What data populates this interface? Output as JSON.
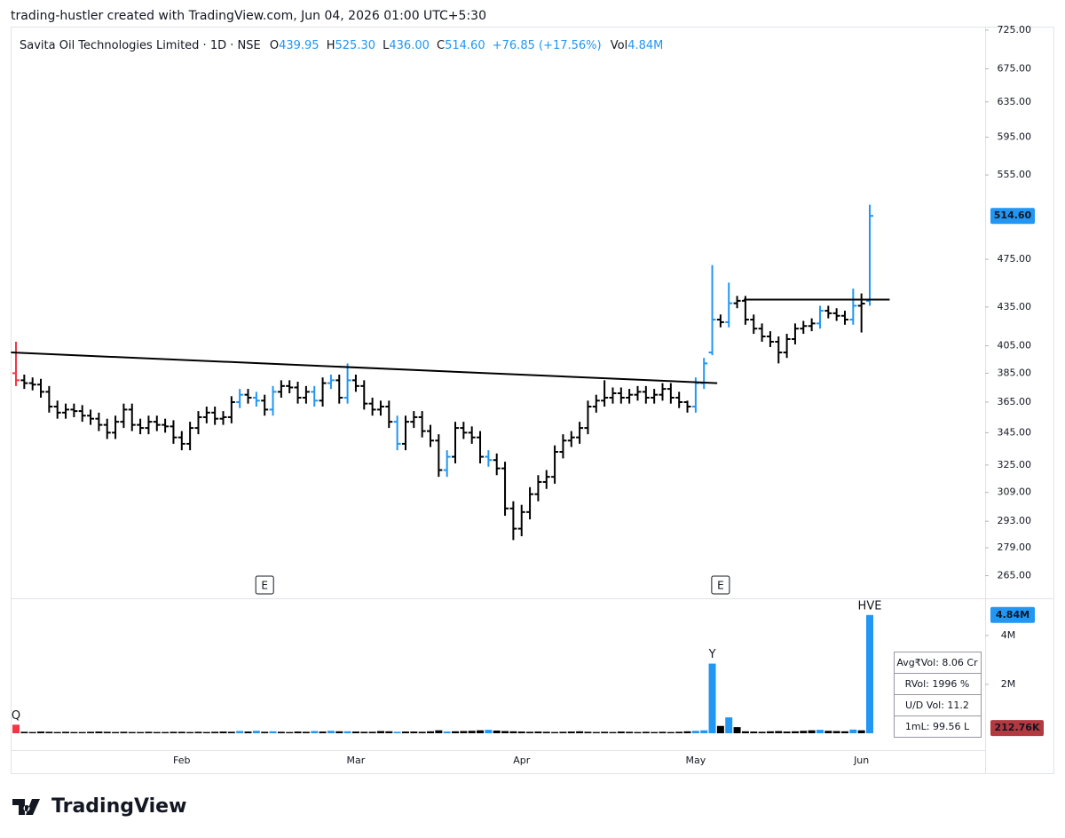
{
  "header": {
    "credit": "trading-hustler created with TradingView.com, Jun 04, 2026 01:00 UTC+5:30"
  },
  "footer": {
    "brand": "TradingView"
  },
  "chart_data": {
    "type": "ohlc",
    "legend": {
      "name": "Savita Oil Technologies Limited · 1D · NSE",
      "items": [
        {
          "label": "O",
          "value": "439.95"
        },
        {
          "label": "H",
          "value": "525.30"
        },
        {
          "label": "L",
          "value": "436.00"
        },
        {
          "label": "C",
          "value": "514.60"
        }
      ],
      "change": "+76.85 (+17.56%)",
      "volume_label": "Vol",
      "volume_value": "4.84M"
    },
    "log_scale": true,
    "grid": false,
    "ylim": [
      255,
      732
    ],
    "yticks": [
      {
        "value": 725,
        "label": "725.00"
      },
      {
        "value": 675,
        "label": "675.00"
      },
      {
        "value": 635,
        "label": "635.00"
      },
      {
        "value": 595,
        "label": "595.00"
      },
      {
        "value": 555,
        "label": "555.00"
      },
      {
        "value": 475,
        "label": "475.00"
      },
      {
        "value": 435,
        "label": "435.00"
      },
      {
        "value": 405,
        "label": "405.00"
      },
      {
        "value": 385,
        "label": "385.00"
      },
      {
        "value": 365,
        "label": "365.00"
      },
      {
        "value": 345,
        "label": "345.00"
      },
      {
        "value": 325,
        "label": "325.00"
      },
      {
        "value": 309,
        "label": "309.00"
      },
      {
        "value": 293,
        "label": "293.00"
      },
      {
        "value": 279,
        "label": "279.00"
      },
      {
        "value": 265,
        "label": "265.00"
      }
    ],
    "categories": [
      null,
      null,
      null,
      null,
      null,
      null,
      null,
      null,
      null,
      null,
      null,
      null,
      null,
      null,
      null,
      null,
      null,
      null,
      null,
      null,
      "Feb",
      null,
      null,
      null,
      null,
      null,
      null,
      null,
      null,
      null,
      null,
      null,
      null,
      null,
      null,
      null,
      null,
      null,
      null,
      null,
      null,
      "Mar",
      null,
      null,
      null,
      null,
      null,
      null,
      null,
      null,
      null,
      null,
      null,
      null,
      null,
      null,
      null,
      null,
      null,
      null,
      null,
      "Apr",
      null,
      null,
      null,
      null,
      null,
      null,
      null,
      null,
      null,
      null,
      null,
      null,
      null,
      null,
      null,
      null,
      null,
      null,
      null,
      null,
      "May",
      null,
      null,
      null,
      null,
      null,
      null,
      null,
      null,
      null,
      null,
      null,
      null,
      null,
      null,
      null,
      null,
      null,
      null,
      null,
      "Jun",
      null
    ],
    "open": [
      385,
      380,
      378,
      377,
      372,
      362,
      358,
      360,
      359,
      356,
      354,
      350,
      345,
      352,
      360,
      350,
      348,
      352,
      350,
      349,
      342,
      338,
      348,
      355,
      358,
      354,
      355,
      365,
      370,
      368,
      366,
      360,
      372,
      376,
      375,
      368,
      372,
      366,
      378,
      380,
      368,
      380,
      376,
      364,
      360,
      362,
      352,
      338,
      352,
      355,
      346,
      340,
      322,
      330,
      348,
      345,
      342,
      330,
      328,
      323,
      300,
      289,
      298,
      308,
      315,
      318,
      333,
      340,
      342,
      348,
      362,
      366,
      368,
      371,
      368,
      370,
      372,
      368,
      370,
      374,
      368,
      365,
      362,
      378,
      400,
      425,
      423,
      438,
      440,
      425,
      418,
      412,
      408,
      400,
      410,
      418,
      420,
      422,
      432,
      430,
      428,
      425,
      436,
      439.95
    ],
    "high": [
      408,
      384,
      382,
      381,
      376,
      366,
      364,
      364,
      363,
      360,
      358,
      354,
      356,
      364,
      364,
      354,
      356,
      356,
      354,
      353,
      346,
      352,
      359,
      362,
      362,
      359,
      369,
      374,
      374,
      372,
      370,
      376,
      380,
      380,
      379,
      376,
      376,
      382,
      384,
      384,
      392,
      384,
      380,
      368,
      366,
      366,
      356,
      356,
      359,
      359,
      350,
      344,
      334,
      352,
      352,
      349,
      346,
      334,
      332,
      327,
      304,
      302,
      312,
      319,
      322,
      337,
      344,
      346,
      352,
      366,
      370,
      380,
      375,
      375,
      374,
      376,
      376,
      374,
      378,
      378,
      372,
      366,
      382,
      396,
      470,
      429,
      455,
      444,
      444,
      429,
      422,
      416,
      412,
      414,
      422,
      424,
      426,
      436,
      436,
      434,
      432,
      450,
      446,
      525.3
    ],
    "low": [
      376,
      374,
      373,
      368,
      358,
      354,
      354,
      355,
      352,
      350,
      346,
      341,
      341,
      348,
      346,
      344,
      344,
      346,
      345,
      338,
      334,
      334,
      344,
      351,
      350,
      350,
      351,
      361,
      364,
      362,
      356,
      356,
      368,
      371,
      364,
      364,
      362,
      362,
      374,
      364,
      364,
      372,
      360,
      356,
      356,
      348,
      334,
      334,
      348,
      342,
      336,
      318,
      318,
      326,
      341,
      338,
      326,
      324,
      319,
      296,
      283,
      285,
      294,
      304,
      311,
      314,
      329,
      336,
      338,
      344,
      358,
      362,
      364,
      364,
      364,
      366,
      364,
      364,
      366,
      364,
      361,
      358,
      358,
      374,
      398,
      419,
      419,
      434,
      421,
      414,
      408,
      404,
      392,
      396,
      406,
      414,
      416,
      418,
      426,
      424,
      421,
      421,
      415,
      436
    ],
    "close": [
      380,
      378,
      377,
      372,
      362,
      358,
      360,
      359,
      356,
      354,
      350,
      345,
      352,
      360,
      350,
      348,
      352,
      350,
      349,
      342,
      338,
      348,
      355,
      358,
      354,
      355,
      365,
      370,
      368,
      366,
      360,
      372,
      376,
      375,
      368,
      372,
      366,
      378,
      380,
      368,
      380,
      376,
      364,
      360,
      362,
      352,
      338,
      352,
      355,
      346,
      340,
      322,
      330,
      348,
      345,
      342,
      330,
      328,
      323,
      300,
      289,
      298,
      308,
      315,
      318,
      333,
      340,
      342,
      348,
      362,
      366,
      368,
      371,
      368,
      370,
      372,
      368,
      370,
      374,
      368,
      365,
      362,
      378,
      392,
      425,
      423,
      438,
      440,
      425,
      418,
      412,
      408,
      400,
      410,
      418,
      420,
      422,
      432,
      430,
      428,
      425,
      436,
      437.75,
      514.6
    ],
    "colors": [
      "#f23645",
      "#000",
      "#000",
      "#000",
      "#000",
      "#000",
      "#000",
      "#000",
      "#000",
      "#000",
      "#000",
      "#000",
      "#000",
      "#000",
      "#000",
      "#000",
      "#000",
      "#000",
      "#000",
      "#000",
      "#000",
      "#000",
      "#000",
      "#000",
      "#000",
      "#000",
      "#000",
      "#2196f3",
      "#000",
      "#2196f3",
      "#000",
      "#2196f3",
      "#000",
      "#000",
      "#000",
      "#000",
      "#2196f3",
      "#000",
      "#2196f3",
      "#000",
      "#2196f3",
      "#000",
      "#000",
      "#000",
      "#000",
      "#000",
      "#2196f3",
      "#000",
      "#000",
      "#000",
      "#000",
      "#000",
      "#2196f3",
      "#000",
      "#000",
      "#000",
      "#000",
      "#2196f3",
      "#000",
      "#000",
      "#000",
      "#000",
      "#000",
      "#000",
      "#000",
      "#000",
      "#000",
      "#000",
      "#000",
      "#000",
      "#000",
      "#000",
      "#000",
      "#000",
      "#000",
      "#000",
      "#000",
      "#000",
      "#000",
      "#000",
      "#000",
      "#000",
      "#2196f3",
      "#2196f3",
      "#2196f3",
      "#000",
      "#2196f3",
      "#000",
      "#000",
      "#000",
      "#000",
      "#000",
      "#000",
      "#000",
      "#000",
      "#000",
      "#000",
      "#2196f3",
      "#000",
      "#000",
      "#000",
      "#2196f3",
      "#000",
      "#2196f3"
    ],
    "price_badge": {
      "value": 514.6,
      "label": "514.60",
      "color": "#2196f3"
    },
    "trendlines": [
      {
        "x": [
          -0.6,
          84.6
        ],
        "y": [
          400,
          378
        ]
      },
      {
        "x": [
          87.8,
          105.4
        ],
        "y": [
          441,
          441
        ]
      }
    ],
    "earnings": [
      {
        "index": 30,
        "label": "E"
      },
      {
        "index": 85,
        "label": "E"
      }
    ],
    "volume": {
      "values": [
        0.35,
        0.06,
        0.05,
        0.07,
        0.06,
        0.05,
        0.06,
        0.05,
        0.05,
        0.06,
        0.07,
        0.06,
        0.05,
        0.06,
        0.05,
        0.05,
        0.06,
        0.05,
        0.05,
        0.06,
        0.06,
        0.05,
        0.06,
        0.05,
        0.06,
        0.07,
        0.06,
        0.09,
        0.07,
        0.1,
        0.06,
        0.08,
        0.06,
        0.05,
        0.07,
        0.06,
        0.09,
        0.07,
        0.1,
        0.08,
        0.08,
        0.07,
        0.06,
        0.06,
        0.09,
        0.08,
        0.06,
        0.07,
        0.07,
        0.06,
        0.08,
        0.12,
        0.07,
        0.08,
        0.09,
        0.1,
        0.12,
        0.14,
        0.11,
        0.09,
        0.08,
        0.07,
        0.06,
        0.07,
        0.06,
        0.05,
        0.06,
        0.07,
        0.08,
        0.06,
        0.05,
        0.06,
        0.05,
        0.07,
        0.06,
        0.05,
        0.06,
        0.05,
        0.06,
        0.05,
        0.06,
        0.08,
        0.1,
        0.12,
        2.85,
        0.3,
        0.65,
        0.25,
        0.08,
        0.07,
        0.06,
        0.08,
        0.09,
        0.07,
        0.08,
        0.1,
        0.12,
        0.14,
        0.1,
        0.09,
        0.08,
        0.15,
        0.12,
        4.84
      ],
      "ylim": [
        -0.69,
        5.45
      ],
      "yticks": [
        {
          "value": 4,
          "label": "4M"
        },
        {
          "value": 2,
          "label": "2M"
        }
      ],
      "last_badge": {
        "value": 4.84,
        "label": "4.84M",
        "color": "#2196f3"
      },
      "average_badge": {
        "value": 0.21276,
        "label": "212.76K",
        "color": "#b2393f"
      },
      "markers": [
        {
          "index": 0,
          "label": "Q",
          "color": "#f23645"
        },
        {
          "index": 84,
          "label": "Y",
          "color": "#2196f3"
        },
        {
          "index": 103,
          "label": "HVE",
          "color": "#2196f3"
        }
      ],
      "stats": [
        "Avg₹Vol: 8.06 Cr",
        "RVol: 1996 %",
        "U/D Vol: 11.2",
        "1mL: 99.56 L"
      ]
    }
  }
}
